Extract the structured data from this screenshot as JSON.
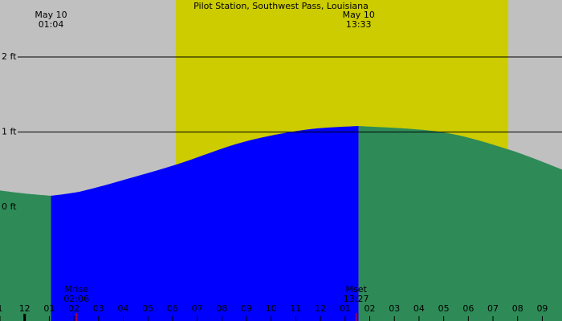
{
  "chart_data": {
    "type": "tide",
    "title": "Pilot Station, Southwest Pass, Louisiana",
    "xlim": [
      -1,
      21.8
    ],
    "ylim": [
      -1.52,
      2.76
    ],
    "yticks": [
      {
        "value": 0,
        "label": "0 ft"
      },
      {
        "value": 1,
        "label": "1 ft"
      },
      {
        "value": 2,
        "label": "2 ft"
      }
    ],
    "xticks": [
      {
        "value": -1,
        "label": "1"
      },
      {
        "value": 0,
        "label": "12"
      },
      {
        "value": 1,
        "label": "01"
      },
      {
        "value": 2,
        "label": "02"
      },
      {
        "value": 3,
        "label": "03"
      },
      {
        "value": 4,
        "label": "04"
      },
      {
        "value": 5,
        "label": "05"
      },
      {
        "value": 6,
        "label": "06"
      },
      {
        "value": 7,
        "label": "07"
      },
      {
        "value": 8,
        "label": "08"
      },
      {
        "value": 9,
        "label": "09"
      },
      {
        "value": 10,
        "label": "10"
      },
      {
        "value": 11,
        "label": "11"
      },
      {
        "value": 12,
        "label": "12"
      },
      {
        "value": 13,
        "label": "01"
      },
      {
        "value": 14,
        "label": "02"
      },
      {
        "value": 15,
        "label": "03"
      },
      {
        "value": 16,
        "label": "04"
      },
      {
        "value": 17,
        "label": "05"
      },
      {
        "value": 18,
        "label": "06"
      },
      {
        "value": 19,
        "label": "07"
      },
      {
        "value": 20,
        "label": "08"
      },
      {
        "value": 21,
        "label": "09"
      }
    ],
    "background_color": "#c0c0c0",
    "daylight": {
      "start": 6.13,
      "end": 19.62,
      "color": "#cccc00"
    },
    "series": [
      {
        "color": "#2e8b57",
        "x": [
          -1,
          0,
          1.07
        ],
        "values": [
          0.22,
          0.18,
          0.15
        ]
      },
      {
        "color": "#0000ff",
        "x": [
          1.07,
          2.3,
          3.9,
          6.2,
          8.8,
          11.4,
          13.55
        ],
        "values": [
          0.15,
          0.21,
          0.35,
          0.57,
          0.86,
          1.03,
          1.08
        ]
      },
      {
        "color": "#2e8b57",
        "x": [
          13.55,
          16.9,
          19.6,
          21.8
        ],
        "values": [
          1.08,
          1.0,
          0.77,
          0.5
        ]
      }
    ],
    "extremes": [
      {
        "date": "May 10",
        "time": "01:04",
        "x": 1.07
      },
      {
        "date": "May 10",
        "time": "13:33",
        "x": 13.55
      }
    ],
    "moon": [
      {
        "label": "Mrise",
        "time": "02:06",
        "x": 2.1
      },
      {
        "label": "Mset",
        "time": "13:27",
        "x": 13.45
      }
    ]
  }
}
